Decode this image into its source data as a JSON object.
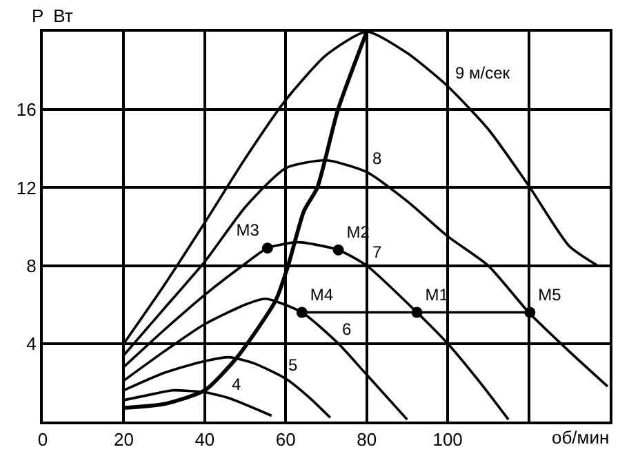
{
  "chart_data": {
    "type": "line",
    "xlabel": "об/мин",
    "ylabel": "P  Вт",
    "xlim": [
      0,
      140
    ],
    "ylim": [
      0,
      20
    ],
    "xticks": [
      0,
      20,
      40,
      60,
      80,
      100,
      {
        "value": 120,
        "label": null
      }
    ],
    "yticks": [
      {
        "value": 0,
        "label": null
      },
      4,
      8,
      12,
      16,
      {
        "value": 20,
        "label": null
      }
    ],
    "grid": true,
    "legend": false,
    "marker": "none",
    "line_style": "solid",
    "series": [
      {
        "name": "9 м/сек",
        "color": "#000000",
        "x": [
          20,
          30,
          40,
          50,
          60,
          70,
          80,
          90,
          100,
          110,
          120,
          130,
          137
        ],
        "values": [
          4,
          7,
          10.2,
          13.5,
          16.5,
          18.8,
          20,
          18.9,
          17.2,
          15,
          12.1,
          9,
          8
        ]
      },
      {
        "name": "8",
        "color": "#000000",
        "x": [
          20,
          30,
          40,
          50,
          60,
          70,
          80,
          90,
          100,
          110,
          120,
          130,
          139.5
        ],
        "values": [
          3.4,
          5.8,
          8.2,
          11,
          13,
          13.4,
          12.8,
          11.3,
          9.5,
          8,
          5.6,
          3.6,
          1.8
        ]
      },
      {
        "name": "7",
        "color": "#000000",
        "x": [
          20,
          30,
          40,
          50,
          55.5,
          63,
          73,
          80,
          92.4,
          100,
          108,
          115
        ],
        "values": [
          2.8,
          4.7,
          6.5,
          8.1,
          8.9,
          9.2,
          8.8,
          8,
          5.6,
          4,
          2,
          0.1
        ]
      },
      {
        "name": "6",
        "color": "#000000",
        "x": [
          20,
          30,
          40,
          50,
          55,
          64,
          73,
          80,
          90
        ],
        "values": [
          2.1,
          3.6,
          5,
          6,
          6.3,
          5.6,
          4,
          2.4,
          0.1
        ]
      },
      {
        "name": "5",
        "color": "#000000",
        "x": [
          20,
          30,
          40,
          46,
          52,
          60,
          66,
          71
        ],
        "values": [
          1.6,
          2.5,
          3.1,
          3.3,
          3,
          2.2,
          1.2,
          0.2
        ]
      },
      {
        "name": "4",
        "color": "#000000",
        "x": [
          20,
          27,
          32,
          40,
          46,
          56.5
        ],
        "values": [
          1.1,
          1.4,
          1.6,
          1.5,
          1.2,
          0.3
        ]
      },
      {
        "color": "#000000",
        "x": [
          20,
          30,
          40,
          48,
          57.5,
          60.6,
          64.5,
          67.8,
          72.9,
          80
        ],
        "values": [
          0.7,
          0.9,
          1.6,
          3.3,
          6.2,
          8,
          10.8,
          12,
          16,
          20
        ]
      },
      {
        "color": "#000000",
        "x": [
          64,
          120.3
        ],
        "values": [
          5.6,
          5.6
        ]
      },
      {
        "type": "scatter",
        "marker": "circle",
        "color": "#000000",
        "x": [
          55.5,
          73,
          64,
          92.4,
          120.3
        ],
        "values": [
          8.9,
          8.8,
          5.6,
          5.6,
          5.6
        ],
        "value_labels": [
          "M3",
          "M2",
          "M4",
          "M1",
          "M5"
        ]
      }
    ]
  }
}
